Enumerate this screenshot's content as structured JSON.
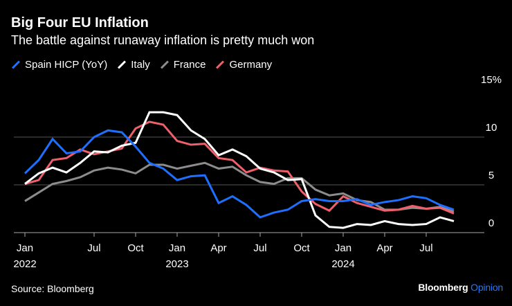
{
  "header": {
    "title": "Big Four EU Inflation",
    "subtitle": "The battle against runaway inflation is pretty much won"
  },
  "footer": {
    "source": "Source: Bloomberg",
    "brand": "Bloomberg",
    "brand_suffix": "Opinion"
  },
  "chart_data": {
    "type": "line",
    "title": "Big Four EU Inflation",
    "subtitle": "The battle against runaway inflation is pretty much won",
    "x": [
      "2022-01",
      "2022-02",
      "2022-03",
      "2022-04",
      "2022-05",
      "2022-06",
      "2022-07",
      "2022-08",
      "2022-09",
      "2022-10",
      "2022-11",
      "2022-12",
      "2023-01",
      "2023-02",
      "2023-03",
      "2023-04",
      "2023-05",
      "2023-06",
      "2023-07",
      "2023-08",
      "2023-09",
      "2023-10",
      "2023-11",
      "2023-12",
      "2024-01",
      "2024-02",
      "2024-03",
      "2024-04",
      "2024-05",
      "2024-06",
      "2024-07",
      "2024-08"
    ],
    "series": [
      {
        "name": "Spain HICP (YoY)",
        "color": "#1f6fff",
        "values": [
          6.2,
          7.6,
          9.8,
          8.3,
          8.5,
          10.0,
          10.7,
          10.5,
          9.0,
          7.3,
          6.7,
          5.5,
          5.9,
          6.0,
          3.1,
          3.8,
          2.9,
          1.6,
          2.1,
          2.4,
          3.3,
          3.5,
          3.3,
          3.3,
          3.5,
          2.9,
          3.2,
          3.4,
          3.8,
          3.6,
          2.9,
          2.4
        ]
      },
      {
        "name": "Italy",
        "color": "#ffffff",
        "values": [
          5.1,
          6.2,
          6.8,
          6.3,
          7.3,
          8.5,
          8.4,
          9.1,
          9.4,
          12.6,
          12.6,
          12.3,
          10.7,
          9.8,
          8.1,
          8.7,
          8.0,
          6.7,
          6.3,
          5.5,
          5.6,
          1.8,
          0.6,
          0.5,
          0.9,
          0.8,
          1.2,
          0.9,
          0.8,
          0.9,
          1.6,
          1.2
        ]
      },
      {
        "name": "France",
        "color": "#8c8c8c",
        "values": [
          3.3,
          4.2,
          5.1,
          5.4,
          5.8,
          6.5,
          6.8,
          6.6,
          6.2,
          7.1,
          7.1,
          6.7,
          7.0,
          7.3,
          6.7,
          6.9,
          6.0,
          5.3,
          5.1,
          5.7,
          5.7,
          4.5,
          3.9,
          4.1,
          3.4,
          3.2,
          2.4,
          2.4,
          2.6,
          2.5,
          2.7,
          2.2
        ]
      },
      {
        "name": "Germany",
        "color": "#f0606a",
        "values": [
          5.1,
          5.5,
          7.6,
          7.8,
          8.7,
          8.2,
          8.5,
          8.8,
          10.9,
          11.6,
          11.3,
          9.6,
          9.2,
          9.3,
          7.8,
          7.6,
          6.3,
          6.8,
          6.5,
          6.4,
          4.3,
          3.0,
          2.3,
          3.8,
          3.1,
          2.7,
          2.3,
          2.4,
          2.8,
          2.5,
          2.6,
          2.0
        ]
      }
    ],
    "x_ticks": [
      {
        "month": "2022-01",
        "label": "Jan",
        "year": "2022"
      },
      {
        "month": "2022-07",
        "label": "Jul"
      },
      {
        "month": "2022-10",
        "label": "Oct"
      },
      {
        "month": "2023-01",
        "label": "Jan",
        "year": "2023"
      },
      {
        "month": "2023-04",
        "label": "Apr"
      },
      {
        "month": "2023-07",
        "label": "Jul"
      },
      {
        "month": "2023-10",
        "label": "Oct"
      },
      {
        "month": "2024-01",
        "label": "Jan",
        "year": "2024"
      },
      {
        "month": "2024-04",
        "label": "Apr"
      },
      {
        "month": "2024-07",
        "label": "Jul"
      }
    ],
    "y_ticks": [
      {
        "value": 0,
        "label": "0"
      },
      {
        "value": 5,
        "label": "5"
      },
      {
        "value": 10,
        "label": "10"
      },
      {
        "value": 15,
        "label": "15%"
      }
    ],
    "ylim": [
      0,
      15
    ],
    "y_axis_side": "right",
    "grid": true,
    "legend": "top-left"
  }
}
